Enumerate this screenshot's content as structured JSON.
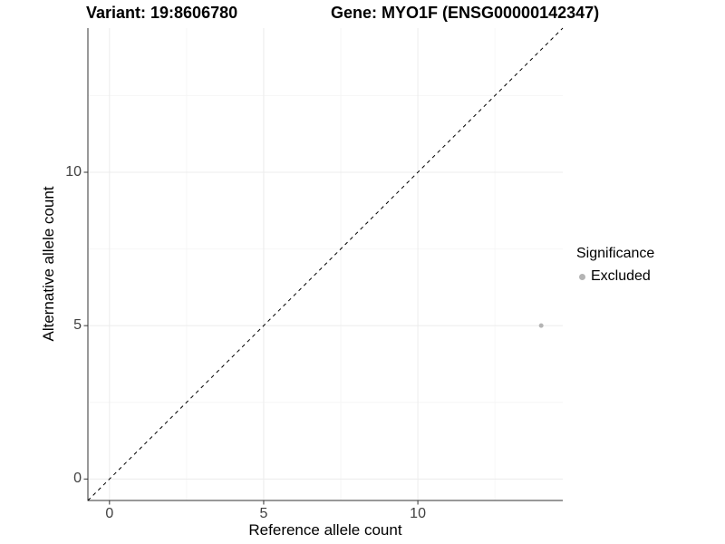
{
  "titles": {
    "left": "Variant: 19:8606780",
    "right": "Gene: MYO1F (ENSG00000142347)"
  },
  "axes": {
    "x_label": "Reference allele count",
    "y_label": "Alternative allele count"
  },
  "legend": {
    "title": "Significance",
    "position": "right",
    "items": [
      {
        "label": "Excluded",
        "color": "#b4b4b4"
      }
    ]
  },
  "chart_data": {
    "type": "scatter",
    "title": "Variant: 19:8606780   Gene: MYO1F (ENSG00000142347)",
    "xlabel": "Reference allele count",
    "ylabel": "Alternative allele count",
    "xlim": [
      -0.7,
      14.7
    ],
    "ylim": [
      -0.7,
      14.7
    ],
    "x_ticks": [
      0,
      5,
      10
    ],
    "y_ticks": [
      0,
      5,
      10
    ],
    "x_minor_ticks": [
      2.5,
      7.5,
      12.5
    ],
    "y_minor_ticks": [
      2.5,
      7.5,
      12.5
    ],
    "grid": "major+minor",
    "legend_position": "right",
    "series": [
      {
        "name": "Excluded",
        "color": "#b4b4b4",
        "point_radius": 2.5,
        "points": [
          {
            "x": 14,
            "y": 5
          }
        ]
      }
    ],
    "reference_line": {
      "type": "identity y=x",
      "style": "dashed",
      "color": "#000000"
    },
    "colors": {
      "axis_line": "#333333",
      "tick_mark": "#333333",
      "grid_major": "#ececec",
      "grid_minor": "#f6f6f6",
      "background": "#ffffff"
    }
  }
}
